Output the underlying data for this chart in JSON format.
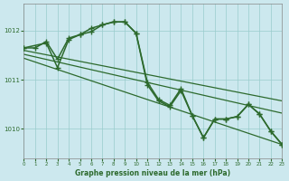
{
  "title": "Graphe pression niveau de la mer (hPa)",
  "background_color": "#cce8ee",
  "grid_color": "#99cccc",
  "line_color": "#2d6a2d",
  "xlim": [
    0,
    23
  ],
  "ylim": [
    1009.4,
    1012.55
  ],
  "yticks": [
    1010,
    1011,
    1012
  ],
  "xticks": [
    0,
    1,
    2,
    3,
    4,
    5,
    6,
    7,
    8,
    9,
    10,
    11,
    12,
    13,
    14,
    15,
    16,
    17,
    18,
    19,
    20,
    21,
    22,
    23
  ],
  "curve1_x": [
    0,
    1,
    2,
    3,
    4,
    5,
    6,
    7,
    8,
    9,
    10,
    11,
    12,
    13,
    14,
    15,
    16,
    17,
    18,
    19,
    20,
    21,
    22,
    23
  ],
  "curve1_y": [
    1011.65,
    1011.65,
    1011.78,
    1011.42,
    1011.85,
    1011.92,
    1011.98,
    1012.12,
    1012.18,
    1012.18,
    1011.95,
    1010.95,
    1010.6,
    1010.48,
    1010.82,
    1010.27,
    1009.82,
    1010.2,
    1010.2,
    1010.25,
    1010.5,
    1010.3,
    1009.95,
    1009.68
  ],
  "curve2_x": [
    0,
    2,
    3,
    4,
    5,
    6,
    7,
    8,
    9,
    10,
    11,
    12,
    13,
    14,
    15,
    16,
    17,
    18,
    19,
    20,
    21,
    22,
    23
  ],
  "curve2_y": [
    1011.65,
    1011.75,
    1011.25,
    1011.82,
    1011.92,
    1012.05,
    1012.12,
    1012.18,
    1012.18,
    1011.95,
    1010.9,
    1010.57,
    1010.45,
    1010.78,
    1010.27,
    1009.82,
    1010.2,
    1010.2,
    1010.25,
    1010.5,
    1010.3,
    1009.95,
    1009.68
  ],
  "line1_x": [
    0,
    23
  ],
  "line1_y": [
    1011.6,
    1010.57
  ],
  "line2_x": [
    0,
    23
  ],
  "line2_y": [
    1011.52,
    1010.32
  ],
  "line3_x": [
    0,
    23
  ],
  "line3_y": [
    1011.44,
    1009.68
  ]
}
